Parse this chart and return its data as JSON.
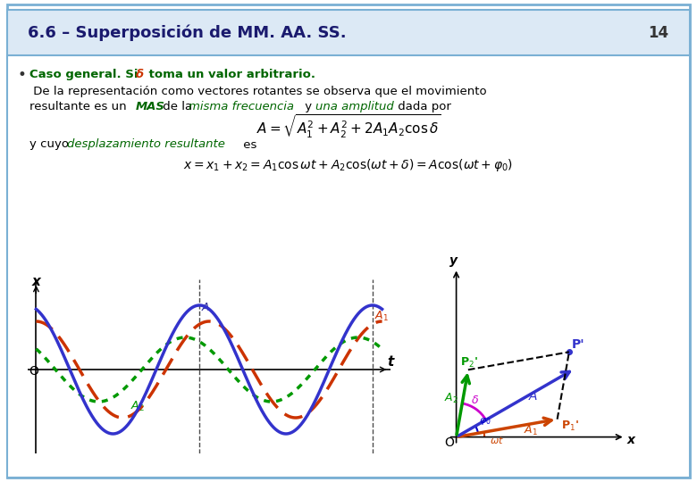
{
  "title": "6.6 – Superposición de MM. AA. SS.",
  "slide_number": "14",
  "bg_color": "#ffffff",
  "border_color": "#7ab0d4",
  "header_bg": "#dce9f5",
  "bullet_text_green": "Caso general. Si δ toma un valor arbitrario.",
  "body_text1": "De la representación como vectores rotantes se observa que el movimiento",
  "body_text2": "resultante es un MAS de la misma frecuencia y una amplitud dada por",
  "formula1": "$A = \\sqrt{A_1^2 + A_2^2 + 2A_1 A_2 \\cos\\delta}$",
  "text_y_cuyo": "y cuyo desplazamiento resultante es",
  "formula2": "$x = x_1 + x_2 = A_1 \\cos\\omega t + A_2 \\cos(\\omega t + \\delta) = A\\cos(\\omega t + \\varphi_0)$",
  "wave_color_blue": "#3333cc",
  "wave_color_red": "#cc3300",
  "wave_color_green": "#009900",
  "arrow_color_blue": "#3333cc",
  "arrow_color_green": "#009900",
  "arrow_color_orange": "#cc4400",
  "arrow_color_magenta": "#cc00cc",
  "dashed_color": "#000000",
  "A1": 0.75,
  "A2": 0.5,
  "delta_deg": 50,
  "phi0_deg": 20,
  "omega_t_deg": 10
}
